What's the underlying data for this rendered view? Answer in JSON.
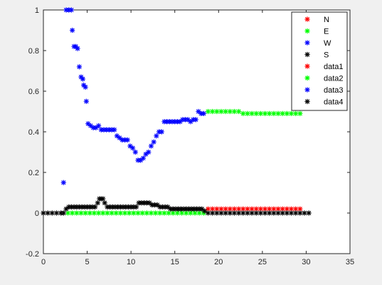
{
  "chart_data": {
    "type": "scatter",
    "marker": "*",
    "xlim": [
      0,
      35
    ],
    "ylim": [
      -0.2,
      1
    ],
    "xticks": [
      0,
      5,
      10,
      15,
      20,
      25,
      30,
      35
    ],
    "yticks": [
      -0.2,
      0,
      0.2,
      0.4,
      0.6,
      0.8,
      1
    ],
    "xtick_labels": [
      "0",
      "5",
      "10",
      "15",
      "20",
      "25",
      "30",
      "35"
    ],
    "ytick_labels": [
      "-0.2",
      "0",
      "0.2",
      "0.4",
      "0.6",
      "0.8",
      "1"
    ],
    "grid": false,
    "legend_position": "top-right",
    "legend": [
      "N",
      "E",
      "W",
      "S",
      "data1",
      "data2",
      "data3",
      "data4"
    ],
    "series": [
      {
        "name": "N",
        "color": "#ff0000",
        "points": [
          [
            18.8,
            0.02
          ],
          [
            19.3,
            0.02
          ],
          [
            19.8,
            0.02
          ],
          [
            20.3,
            0.02
          ],
          [
            20.8,
            0.02
          ],
          [
            21.3,
            0.02
          ],
          [
            21.8,
            0.02
          ],
          [
            22.3,
            0.02
          ],
          [
            22.8,
            0.02
          ],
          [
            23.3,
            0.02
          ],
          [
            23.8,
            0.02
          ],
          [
            24.3,
            0.02
          ],
          [
            24.8,
            0.02
          ],
          [
            25.3,
            0.02
          ],
          [
            25.8,
            0.02
          ],
          [
            26.3,
            0.02
          ],
          [
            26.8,
            0.02
          ],
          [
            27.3,
            0.02
          ],
          [
            27.8,
            0.02
          ],
          [
            28.3,
            0.02
          ],
          [
            28.8,
            0.02
          ],
          [
            29.3,
            0.02
          ]
        ]
      },
      {
        "name": "E",
        "color": "#00ff00",
        "points": [
          [
            2.8,
            0
          ],
          [
            3.3,
            0
          ],
          [
            3.8,
            0
          ],
          [
            4.3,
            0
          ],
          [
            4.8,
            0
          ],
          [
            5.3,
            0
          ],
          [
            5.8,
            0
          ],
          [
            6.3,
            0
          ],
          [
            6.8,
            0
          ],
          [
            7.3,
            0
          ],
          [
            7.8,
            0
          ],
          [
            8.3,
            0
          ],
          [
            8.8,
            0
          ],
          [
            9.3,
            0
          ],
          [
            9.8,
            0
          ],
          [
            10.3,
            0
          ],
          [
            10.8,
            0
          ],
          [
            11.3,
            0
          ],
          [
            11.8,
            0
          ],
          [
            12.3,
            0
          ],
          [
            12.8,
            0
          ],
          [
            13.3,
            0
          ],
          [
            13.8,
            0
          ],
          [
            14.3,
            0
          ],
          [
            14.8,
            0
          ],
          [
            15.3,
            0
          ],
          [
            15.8,
            0
          ],
          [
            16.3,
            0
          ],
          [
            16.8,
            0
          ],
          [
            17.3,
            0
          ],
          [
            17.8,
            0
          ],
          [
            18.3,
            0
          ],
          [
            18.8,
            0.5
          ],
          [
            19.3,
            0.5
          ],
          [
            19.8,
            0.5
          ],
          [
            20.3,
            0.5
          ],
          [
            20.8,
            0.5
          ],
          [
            21.3,
            0.5
          ],
          [
            21.8,
            0.5
          ],
          [
            22.3,
            0.5
          ],
          [
            22.8,
            0.49
          ],
          [
            23.3,
            0.49
          ],
          [
            23.8,
            0.49
          ],
          [
            24.3,
            0.49
          ],
          [
            24.8,
            0.49
          ],
          [
            25.3,
            0.49
          ],
          [
            25.8,
            0.49
          ],
          [
            26.3,
            0.49
          ],
          [
            26.8,
            0.49
          ],
          [
            27.3,
            0.49
          ],
          [
            27.8,
            0.49
          ],
          [
            28.3,
            0.49
          ],
          [
            28.8,
            0.49
          ],
          [
            29.3,
            0.49
          ]
        ]
      },
      {
        "name": "W",
        "color": "#0000ff",
        "points": [
          [
            2.3,
            0.15
          ],
          [
            2.6,
            1.0
          ],
          [
            2.9,
            1.0
          ],
          [
            3.2,
            1.0
          ],
          [
            3.3,
            0.9
          ],
          [
            3.5,
            0.82
          ],
          [
            3.7,
            0.82
          ],
          [
            3.9,
            0.81
          ],
          [
            4.1,
            0.72
          ],
          [
            4.3,
            0.67
          ],
          [
            4.5,
            0.66
          ],
          [
            4.6,
            0.63
          ],
          [
            4.8,
            0.62
          ],
          [
            4.9,
            0.55
          ],
          [
            5.1,
            0.44
          ],
          [
            5.4,
            0.43
          ],
          [
            5.7,
            0.42
          ],
          [
            6.0,
            0.42
          ],
          [
            6.3,
            0.43
          ],
          [
            6.6,
            0.41
          ],
          [
            6.9,
            0.41
          ],
          [
            7.2,
            0.41
          ],
          [
            7.5,
            0.41
          ],
          [
            7.8,
            0.41
          ],
          [
            8.1,
            0.41
          ],
          [
            8.4,
            0.38
          ],
          [
            8.7,
            0.37
          ],
          [
            9.0,
            0.36
          ],
          [
            9.3,
            0.36
          ],
          [
            9.6,
            0.36
          ],
          [
            9.9,
            0.33
          ],
          [
            10.2,
            0.32
          ],
          [
            10.5,
            0.3
          ],
          [
            10.8,
            0.26
          ],
          [
            11.1,
            0.26
          ],
          [
            11.4,
            0.27
          ],
          [
            11.7,
            0.29
          ],
          [
            12.0,
            0.3
          ],
          [
            12.3,
            0.33
          ],
          [
            12.6,
            0.35
          ],
          [
            12.9,
            0.38
          ],
          [
            13.2,
            0.4
          ],
          [
            13.5,
            0.4
          ],
          [
            13.8,
            0.45
          ],
          [
            14.1,
            0.45
          ],
          [
            14.4,
            0.45
          ],
          [
            14.7,
            0.45
          ],
          [
            15.0,
            0.45
          ],
          [
            15.3,
            0.45
          ],
          [
            15.6,
            0.45
          ],
          [
            15.9,
            0.46
          ],
          [
            16.2,
            0.46
          ],
          [
            16.5,
            0.46
          ],
          [
            16.8,
            0.45
          ],
          [
            17.1,
            0.46
          ],
          [
            17.4,
            0.46
          ],
          [
            17.7,
            0.5
          ],
          [
            18.0,
            0.49
          ],
          [
            18.3,
            0.49
          ]
        ]
      },
      {
        "name": "S",
        "color": "#000000",
        "points": [
          [
            0,
            0
          ],
          [
            0.5,
            0
          ],
          [
            1.0,
            0
          ],
          [
            1.5,
            0
          ],
          [
            2.0,
            0
          ],
          [
            2.3,
            0
          ],
          [
            2.6,
            0.02
          ],
          [
            2.9,
            0.03
          ],
          [
            3.2,
            0.03
          ],
          [
            3.5,
            0.03
          ],
          [
            3.8,
            0.03
          ],
          [
            4.1,
            0.03
          ],
          [
            4.4,
            0.03
          ],
          [
            4.7,
            0.03
          ],
          [
            5.0,
            0.03
          ],
          [
            5.3,
            0.03
          ],
          [
            5.6,
            0.03
          ],
          [
            5.9,
            0.03
          ],
          [
            6.2,
            0.05
          ],
          [
            6.4,
            0.07
          ],
          [
            6.6,
            0.07
          ],
          [
            6.8,
            0.07
          ],
          [
            7.0,
            0.05
          ],
          [
            7.3,
            0.03
          ],
          [
            7.6,
            0.03
          ],
          [
            7.9,
            0.03
          ],
          [
            8.2,
            0.03
          ],
          [
            8.5,
            0.03
          ],
          [
            8.8,
            0.03
          ],
          [
            9.1,
            0.03
          ],
          [
            9.4,
            0.03
          ],
          [
            9.7,
            0.03
          ],
          [
            10.0,
            0.03
          ],
          [
            10.3,
            0.03
          ],
          [
            10.6,
            0.03
          ],
          [
            10.9,
            0.05
          ],
          [
            11.2,
            0.05
          ],
          [
            11.5,
            0.05
          ],
          [
            11.8,
            0.05
          ],
          [
            12.1,
            0.05
          ],
          [
            12.4,
            0.04
          ],
          [
            12.7,
            0.04
          ],
          [
            13.0,
            0.04
          ],
          [
            13.3,
            0.03
          ],
          [
            13.6,
            0.03
          ],
          [
            13.9,
            0.03
          ],
          [
            14.2,
            0.03
          ],
          [
            14.5,
            0.02
          ],
          [
            14.8,
            0.02
          ],
          [
            15.1,
            0.02
          ],
          [
            15.4,
            0.02
          ],
          [
            15.7,
            0.02
          ],
          [
            16.0,
            0.02
          ],
          [
            16.3,
            0.02
          ],
          [
            16.6,
            0.02
          ],
          [
            16.9,
            0.02
          ],
          [
            17.2,
            0.02
          ],
          [
            17.5,
            0.02
          ],
          [
            17.8,
            0.02
          ],
          [
            18.1,
            0.02
          ],
          [
            18.4,
            0.01
          ],
          [
            18.8,
            0
          ],
          [
            19.3,
            0
          ],
          [
            19.8,
            0
          ],
          [
            20.3,
            0
          ],
          [
            20.8,
            0
          ],
          [
            21.3,
            0
          ],
          [
            21.8,
            0
          ],
          [
            22.3,
            0
          ],
          [
            22.8,
            0
          ],
          [
            23.3,
            0
          ],
          [
            23.8,
            0
          ],
          [
            24.3,
            0
          ],
          [
            24.8,
            0
          ],
          [
            25.3,
            0
          ],
          [
            25.8,
            0
          ],
          [
            26.3,
            0
          ],
          [
            26.8,
            0
          ],
          [
            27.3,
            0
          ],
          [
            27.8,
            0
          ],
          [
            28.3,
            0
          ],
          [
            28.8,
            0
          ],
          [
            29.3,
            0
          ],
          [
            29.8,
            0
          ],
          [
            30.3,
            0
          ]
        ]
      },
      {
        "name": "data1",
        "color": "#ff0000",
        "points": []
      },
      {
        "name": "data2",
        "color": "#00ff00",
        "points": []
      },
      {
        "name": "data3",
        "color": "#0000ff",
        "points": []
      },
      {
        "name": "data4",
        "color": "#000000",
        "points": []
      }
    ]
  }
}
